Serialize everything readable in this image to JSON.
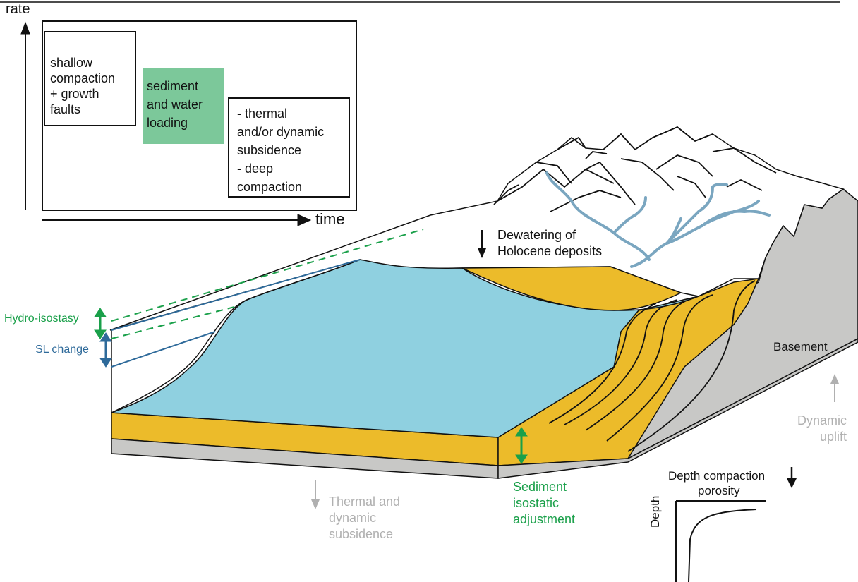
{
  "colors": {
    "water": "#8fd0e0",
    "sediment": "#ecbb2a",
    "basement": "#c8c8c6",
    "river": "#7aa6c0",
    "green_box": "#7cc89a",
    "green_label": "#1aa04a",
    "blue_label": "#2e6a9a",
    "grey_label": "#b0b0b0",
    "line": "#111111"
  },
  "inset": {
    "axis_y": "rate",
    "axis_x": "time",
    "box1": "shallow\ncompaction\n+ growth\n faults",
    "box2": "sediment\nand water\nloading",
    "box3": "- thermal\nand/or dynamic\nsubsidence\n- deep\ncompaction"
  },
  "labels": {
    "dewatering": "Dewatering of\nHolocene deposits",
    "hydro_isostasy": "Hydro-isostasy",
    "sl_change": "SL change",
    "basement": "Basement",
    "dynamic_uplift": "Dynamic\nuplift",
    "thermal_subsidence": "Thermal and\ndynamic\nsubsidence",
    "sediment_isostatic": "Sediment\nisostatic\nadjustment",
    "depth_compaction": "Depth compaction",
    "porosity": "porosity",
    "depth": "Depth"
  }
}
